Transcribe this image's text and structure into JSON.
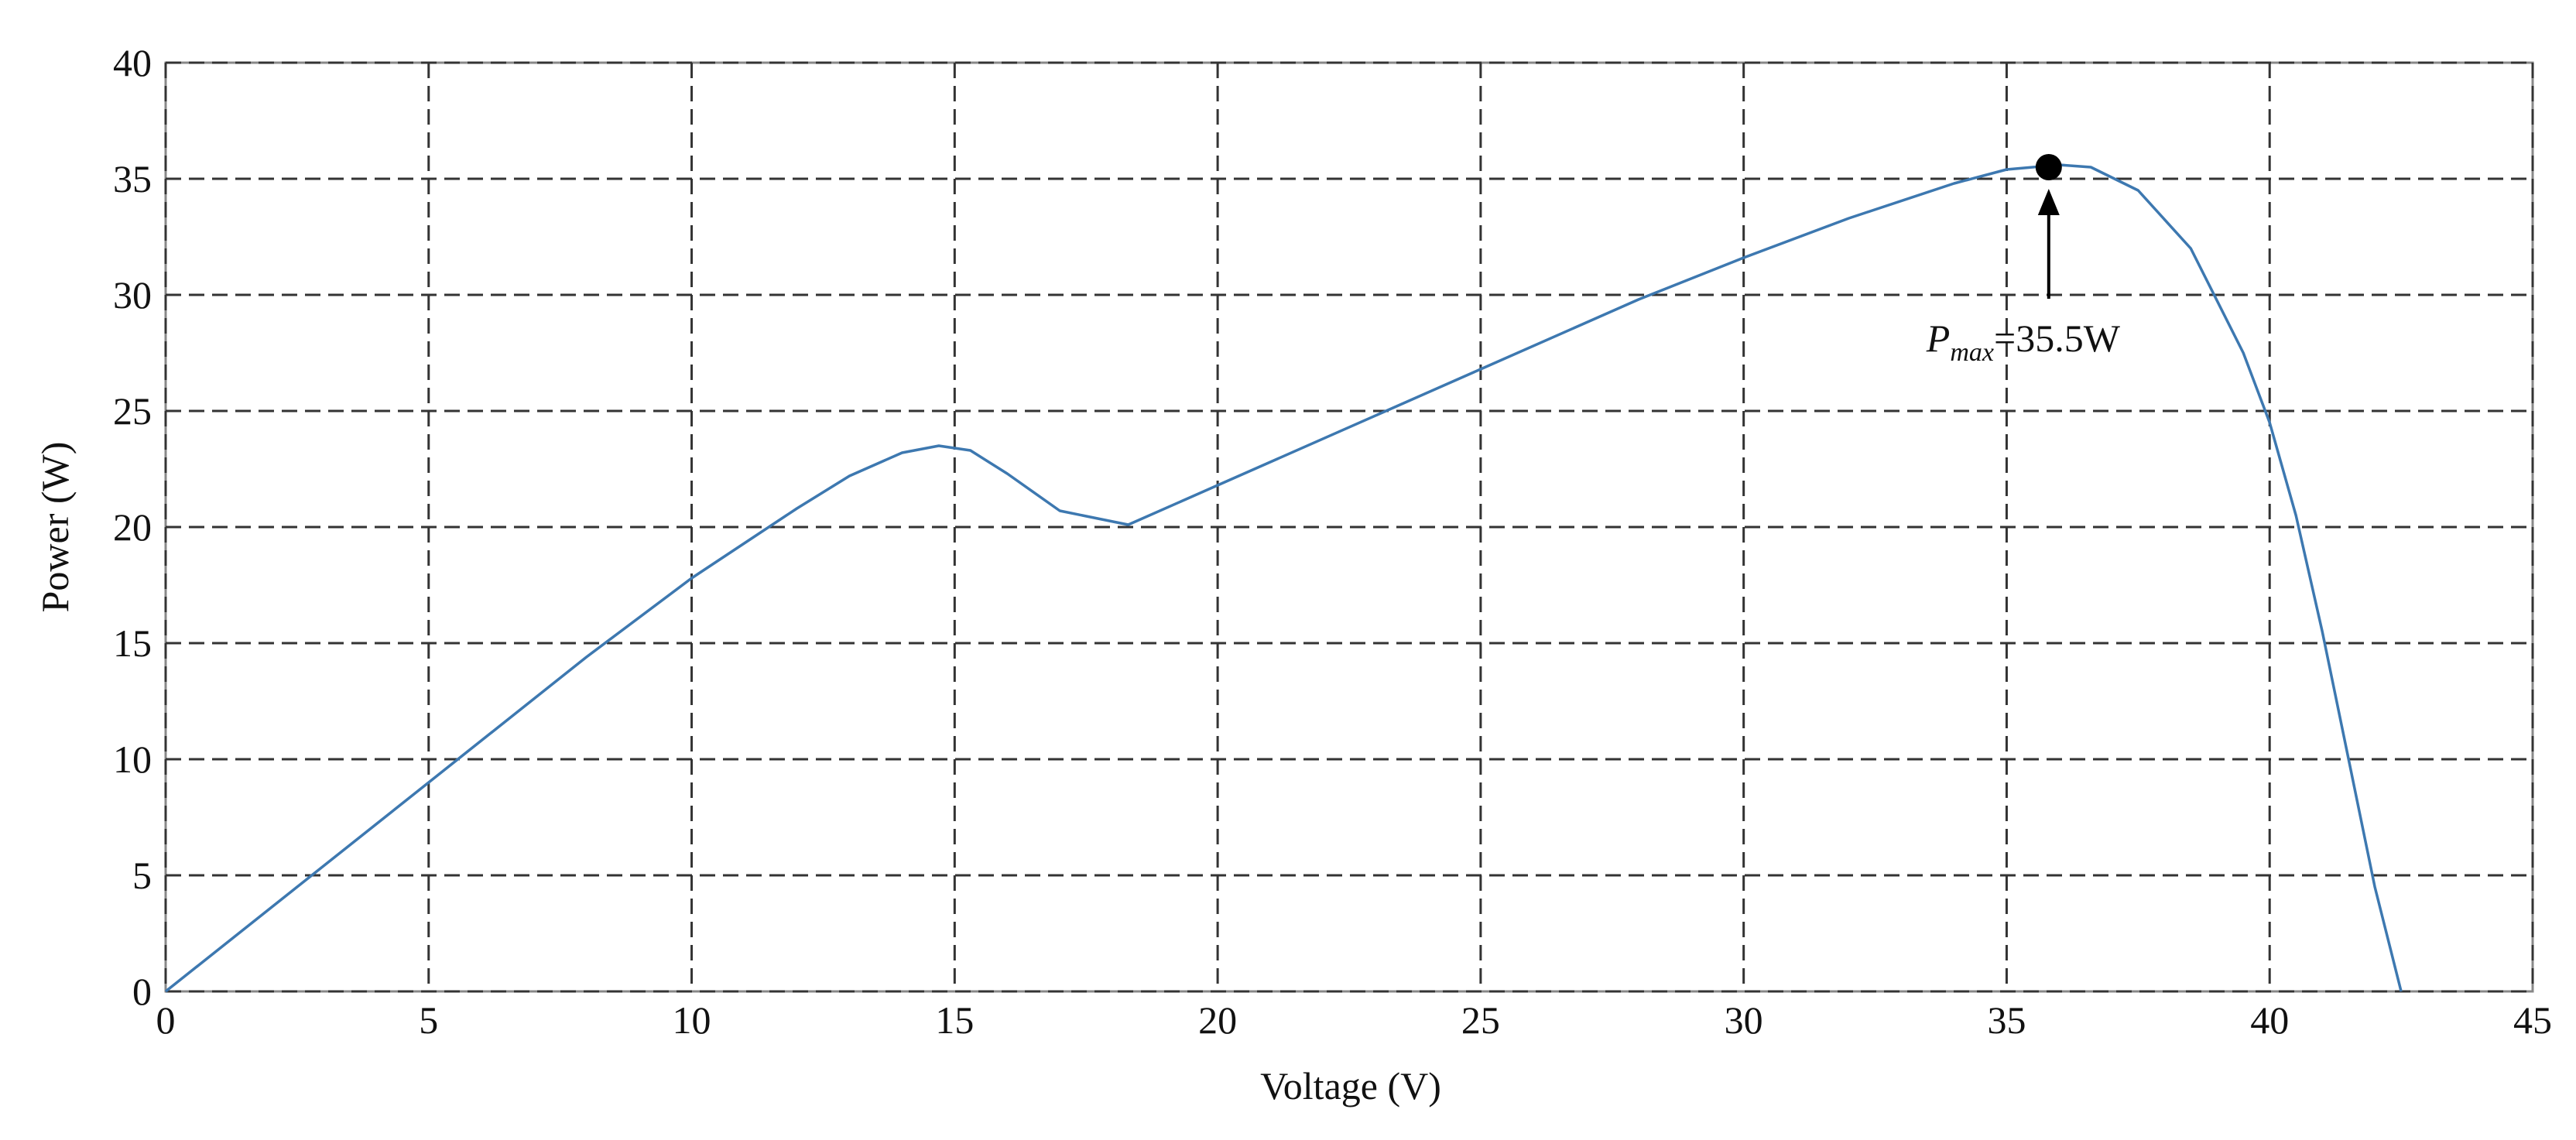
{
  "chart_data": {
    "type": "line",
    "x_label": "Voltage (V)",
    "y_label": "Power (W)",
    "x": [
      0,
      2,
      5,
      8,
      10,
      12,
      13,
      14,
      14.7,
      15.3,
      16,
      17,
      18.3,
      20,
      25,
      28,
      30,
      32,
      34,
      35,
      36,
      36.6,
      37.5,
      38.5,
      39.5,
      40,
      40.5,
      41,
      41.5,
      42,
      42.5
    ],
    "values": [
      0,
      3.6,
      9,
      14.4,
      17.8,
      20.8,
      22.2,
      23.2,
      23.5,
      23.3,
      22.3,
      20.7,
      20.1,
      21.8,
      26.8,
      29.8,
      31.6,
      33.3,
      34.8,
      35.4,
      35.6,
      35.5,
      34.5,
      32,
      27.5,
      24.5,
      20.5,
      15.5,
      10,
      4.5,
      0
    ],
    "color": "#3d78b0",
    "xlim": [
      0,
      45
    ],
    "xticks": [
      0,
      5,
      10,
      15,
      20,
      25,
      30,
      35,
      40,
      45
    ],
    "ylim": [
      0,
      40
    ],
    "yticks": [
      0,
      5,
      10,
      15,
      20,
      25,
      30,
      35,
      40
    ],
    "grid": true,
    "marker": {
      "x": 35.8,
      "y": 35.5,
      "color": "#000000"
    },
    "annotation": {
      "symbol": "P",
      "subscript": "max",
      "text": "=35.5W"
    }
  }
}
